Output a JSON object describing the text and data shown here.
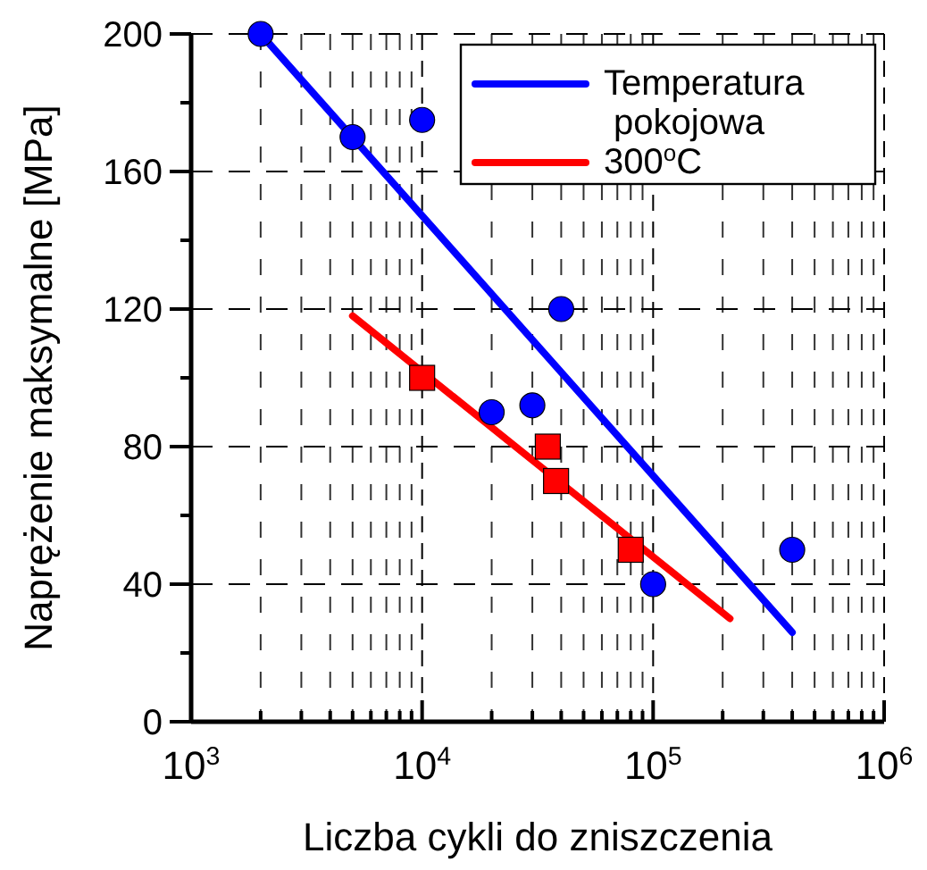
{
  "chart_data": {
    "type": "scatter",
    "xlabel": "Liczba cykli do zniszczenia",
    "ylabel": "Naprężenie maksymalne [MPa]",
    "log": "x",
    "grid": true,
    "legend": "top right",
    "xlim": [
      1000,
      1000000
    ],
    "xticks": [
      {
        "value": 1000,
        "label": "10$^{3}$"
      },
      {
        "value": 2000,
        "label": null
      },
      {
        "value": 3000,
        "label": null
      },
      {
        "value": 4000,
        "label": null
      },
      {
        "value": 5000,
        "label": null
      },
      {
        "value": 6000,
        "label": null
      },
      {
        "value": 7000,
        "label": null
      },
      {
        "value": 8000,
        "label": null
      },
      {
        "value": 9000,
        "label": null
      },
      {
        "value": 10000,
        "label": "10$^{4}$"
      },
      {
        "value": 20000,
        "label": null
      },
      {
        "value": 30000,
        "label": null
      },
      {
        "value": 40000,
        "label": null
      },
      {
        "value": 50000,
        "label": null
      },
      {
        "value": 60000,
        "label": null
      },
      {
        "value": 70000,
        "label": null
      },
      {
        "value": 80000,
        "label": null
      },
      {
        "value": 90000,
        "label": null
      },
      {
        "value": 100000,
        "label": "10$^{5}$"
      },
      {
        "value": 200000,
        "label": null
      },
      {
        "value": 300000,
        "label": null
      },
      {
        "value": 400000,
        "label": null
      },
      {
        "value": 500000,
        "label": null
      },
      {
        "value": 600000,
        "label": null
      },
      {
        "value": 700000,
        "label": null
      },
      {
        "value": 800000,
        "label": null
      },
      {
        "value": 900000,
        "label": null
      },
      {
        "value": 1000000,
        "label": "10$^{6}$"
      }
    ],
    "ylim": [
      0,
      200
    ],
    "yticks": [
      0,
      {
        "value": 20,
        "label": null
      },
      40,
      {
        "value": 60,
        "label": null
      },
      80,
      {
        "value": 100,
        "label": null
      },
      120,
      {
        "value": 140,
        "label": null
      },
      160,
      {
        "value": 180,
        "label": null
      },
      200
    ],
    "series": [
      {
        "marker": "circle",
        "color": "#0000ff",
        "x": [
          2000,
          5000,
          10000,
          20000,
          30000,
          40000,
          100000,
          400000
        ],
        "values": [
          200,
          170,
          175,
          90,
          92,
          120,
          40,
          50
        ]
      },
      {
        "marker": "square",
        "color": "#ff0000",
        "x": [
          10000,
          35000,
          38000,
          80000
        ],
        "values": [
          100,
          80,
          70,
          50
        ]
      },
      {
        "type": "line",
        "name": "Temperatura pokojowa",
        "color": "#0000ff",
        "x": [
          2000,
          400000
        ],
        "values": [
          200,
          26
        ]
      },
      {
        "type": "line",
        "name": "300$^{o}$C",
        "color": "#ff0000",
        "x": [
          5000,
          215000
        ],
        "values": [
          118,
          30
        ]
      }
    ]
  }
}
